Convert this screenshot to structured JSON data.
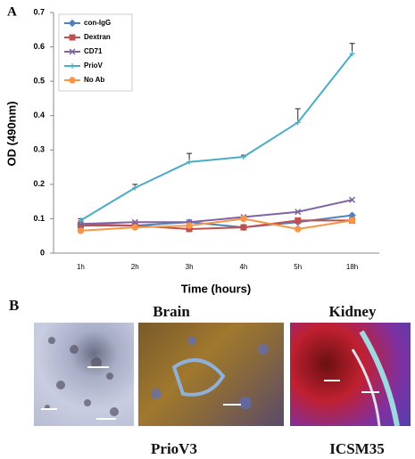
{
  "chart_data": {
    "type": "line",
    "x_label": "Time (hours)",
    "y_label": "OD (490nm)",
    "categories": [
      "1h",
      "2h",
      "3h",
      "4h",
      "5h",
      "18h"
    ],
    "series": [
      {
        "name": "con-IgG",
        "color": "#4f81bd",
        "marker": "diamond",
        "values": [
          0.085,
          0.08,
          0.09,
          0.075,
          0.09,
          0.11
        ]
      },
      {
        "name": "Dextran",
        "color": "#c0504d",
        "marker": "square",
        "values": [
          0.08,
          0.08,
          0.07,
          0.075,
          0.095,
          0.095
        ]
      },
      {
        "name": "CD71",
        "color": "#8064a2",
        "marker": "cross",
        "values": [
          0.085,
          0.09,
          0.09,
          0.105,
          0.12,
          0.155
        ]
      },
      {
        "name": "PrioV",
        "color": "#4bacc6",
        "marker": "star",
        "values": [
          0.095,
          0.19,
          0.265,
          0.28,
          0.38,
          0.58
        ],
        "errors": [
          0.005,
          0.01,
          0.025,
          0.005,
          0.04,
          0.03
        ]
      },
      {
        "name": "No Ab",
        "color": "#f79646",
        "marker": "circle",
        "values": [
          0.065,
          0.075,
          0.08,
          0.1,
          0.07,
          0.095
        ]
      }
    ],
    "ylim": [
      0,
      0.7
    ],
    "yticks": [
      0,
      0.1,
      0.2,
      0.3,
      0.4,
      0.5,
      0.6,
      0.7
    ],
    "legend": "upper left"
  },
  "panel_a": "A",
  "panel_b": {
    "label": "B",
    "tissues": [
      "Brain",
      "Kidney"
    ],
    "antibodies": [
      "PrioV3",
      "ICSM35"
    ]
  }
}
